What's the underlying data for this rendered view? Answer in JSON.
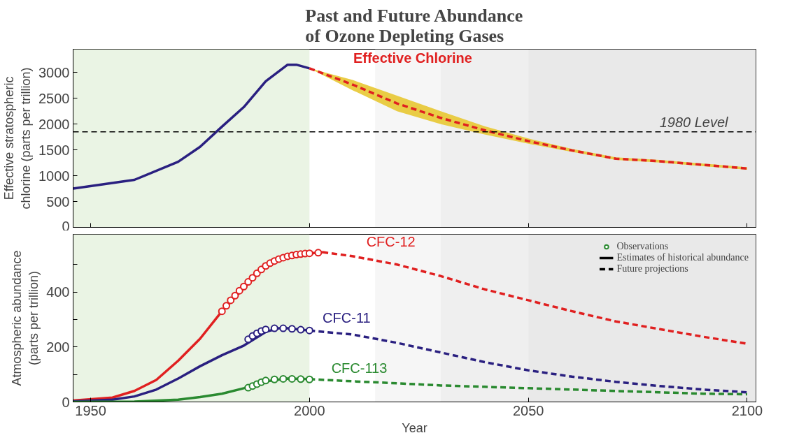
{
  "chart_data": [
    {
      "type": "line",
      "title": "Past and Future Abundance\nof Ozone Depleting Gases",
      "ylabel": "Effective stratospheric\nchlorine (parts per trillion)",
      "xlim": [
        1946,
        2102
      ],
      "xticks": [
        {
          "value": 1950,
          "label": null
        },
        {
          "value": 2000,
          "label": null
        },
        {
          "value": 2050,
          "label": null
        },
        {
          "value": 2100,
          "label": null
        }
      ],
      "ylim": [
        0,
        3450
      ],
      "yticks": [
        0,
        500,
        1000,
        1500,
        2000,
        2500,
        3000
      ],
      "tick_labels": "y",
      "grid": false,
      "legend": false,
      "bands": [
        {
          "axis": "x",
          "from": 1946,
          "to": 2000,
          "color": "#eaf4e4"
        },
        {
          "axis": "x",
          "from": 2015,
          "to": 2030,
          "color": "#f6f6f6"
        },
        {
          "axis": "x",
          "from": 2030,
          "to": 2050,
          "color": "#efefef"
        },
        {
          "axis": "x",
          "from": 2050,
          "to": 2102,
          "color": "#e9e9e9"
        }
      ],
      "ref_lines": [
        {
          "axis": "y",
          "value": 1850,
          "label": "1980 Level",
          "color": "#000000",
          "line_style": "dashed"
        }
      ],
      "series": [
        {
          "color": "#2a2080",
          "line_style": "solid",
          "x": [
            1946,
            1960,
            1970,
            1975,
            1980,
            1985,
            1990,
            1995,
            1997,
            2000
          ],
          "values": [
            750,
            920,
            1270,
            1560,
            1950,
            2330,
            2830,
            3150,
            3150,
            3080
          ]
        },
        {
          "name": "Effective Chlorine",
          "color": "#e02020",
          "line_style": "dashed",
          "x": [
            2000,
            2010,
            2020,
            2030,
            2040,
            2050,
            2060,
            2070,
            2080,
            2090,
            2100
          ],
          "values": [
            3080,
            2760,
            2400,
            2120,
            1880,
            1670,
            1490,
            1330,
            1280,
            1210,
            1140
          ],
          "lower": [
            3080,
            2650,
            2250,
            2000,
            1800,
            1620,
            1460,
            1305,
            1255,
            1185,
            1115
          ],
          "upper": [
            3080,
            2850,
            2550,
            2250,
            1960,
            1720,
            1520,
            1355,
            1305,
            1235,
            1165
          ]
        }
      ]
    },
    {
      "type": "line",
      "xlabel": "Year",
      "ylabel": "Atmospheric abundance\n(parts per trillion)",
      "xlim": [
        1946,
        2102
      ],
      "xticks": [
        1950,
        2000,
        2050,
        2100
      ],
      "ylim": [
        0,
        610
      ],
      "yticks": [
        0,
        {
          "value": 100,
          "label": null
        },
        200,
        {
          "value": 300,
          "label": null
        },
        400,
        {
          "value": 500,
          "label": null
        }
      ],
      "grid": false,
      "legend": "top right",
      "bands": [
        {
          "axis": "x",
          "from": 1946,
          "to": 2000,
          "color": "#eaf4e4"
        },
        {
          "axis": "x",
          "from": 2015,
          "to": 2030,
          "color": "#f6f6f6"
        },
        {
          "axis": "x",
          "from": 2030,
          "to": 2050,
          "color": "#efefef"
        },
        {
          "axis": "x",
          "from": 2050,
          "to": 2102,
          "color": "#e9e9e9"
        }
      ],
      "series": [
        {
          "name": "CFC-12",
          "color": "#e02020",
          "line_style": "solid",
          "x": [
            1946,
            1955,
            1960,
            1965,
            1970,
            1975,
            1980,
            1985,
            1990,
            1995,
            2000,
            2003
          ],
          "values": [
            5,
            16,
            40,
            80,
            150,
            230,
            330,
            415,
            500,
            530,
            540,
            545
          ]
        },
        {
          "color": "#e02020",
          "line_style": "dashed",
          "x": [
            2003,
            2010,
            2020,
            2030,
            2040,
            2050,
            2060,
            2070,
            2080,
            2090,
            2100
          ],
          "values": [
            545,
            530,
            500,
            458,
            410,
            370,
            330,
            293,
            265,
            237,
            212
          ]
        },
        {
          "type": "scatter",
          "marker": "circle",
          "color": "#e02020",
          "x": [
            1980,
            1981,
            1982,
            1983,
            1984,
            1985,
            1986,
            1987,
            1988,
            1989,
            1990,
            1991,
            1992,
            1993,
            1994,
            1995,
            1996,
            1997,
            1998,
            1999,
            2000,
            2002
          ],
          "values": [
            330,
            350,
            370,
            387,
            405,
            420,
            437,
            452,
            468,
            482,
            495,
            505,
            513,
            520,
            525,
            530,
            533,
            536,
            538,
            540,
            541,
            543
          ]
        },
        {
          "name": "CFC-11",
          "color": "#2a2080",
          "line_style": "solid",
          "x": [
            1946,
            1955,
            1960,
            1965,
            1970,
            1975,
            1980,
            1985,
            1990,
            1993,
            1995,
            2000
          ],
          "values": [
            2,
            8,
            20,
            45,
            85,
            130,
            170,
            205,
            255,
            268,
            268,
            260
          ]
        },
        {
          "color": "#2a2080",
          "line_style": "dashed",
          "x": [
            2000,
            2010,
            2020,
            2030,
            2040,
            2050,
            2060,
            2070,
            2080,
            2090,
            2100
          ],
          "values": [
            260,
            245,
            215,
            180,
            145,
            115,
            92,
            73,
            58,
            45,
            35
          ]
        },
        {
          "type": "scatter",
          "marker": "circle",
          "color": "#2a2080",
          "x": [
            1986,
            1987,
            1988,
            1989,
            1990,
            1992,
            1994,
            1996,
            1998,
            2000
          ],
          "values": [
            228,
            240,
            250,
            258,
            264,
            268,
            268,
            266,
            263,
            260
          ]
        },
        {
          "name": "CFC-113",
          "color": "#2a8a30",
          "line_style": "solid",
          "x": [
            1946,
            1960,
            1970,
            1975,
            1980,
            1985,
            1990,
            1995,
            2000
          ],
          "values": [
            0,
            1,
            8,
            18,
            30,
            50,
            75,
            85,
            83
          ]
        },
        {
          "color": "#2a8a30",
          "line_style": "dashed",
          "x": [
            2000,
            2010,
            2020,
            2030,
            2040,
            2050,
            2060,
            2070,
            2080,
            2090,
            2100
          ],
          "values": [
            83,
            75,
            68,
            60,
            55,
            50,
            45,
            40,
            35,
            30,
            28
          ]
        },
        {
          "type": "scatter",
          "marker": "circle",
          "color": "#2a8a30",
          "x": [
            1986,
            1987,
            1988,
            1989,
            1990,
            1992,
            1994,
            1996,
            1998,
            2000
          ],
          "values": [
            52,
            58,
            65,
            72,
            78,
            82,
            84,
            84,
            83,
            82
          ]
        },
        {
          "type": "scatter",
          "name": "Observations",
          "marker": "circle",
          "color": "#2a8a30"
        },
        {
          "name": "Estimates of historical abundance",
          "color": "#000000",
          "line_style": "solid"
        },
        {
          "name": "Future projections",
          "color": "#000000",
          "line_style": "dashed"
        }
      ]
    }
  ]
}
